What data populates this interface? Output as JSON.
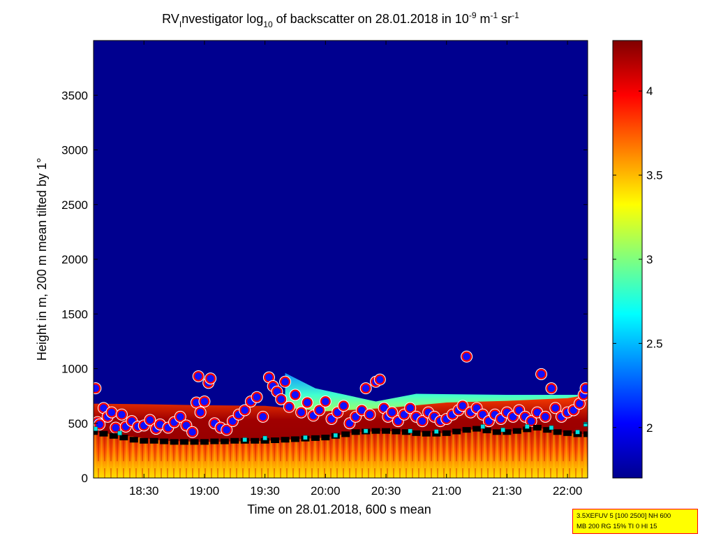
{
  "chart_data": {
    "type": "heatmap",
    "title": {
      "prefix": "RV",
      "sub1": "I",
      "mid1": "nvestigator log",
      "sub2": "10",
      "mid2": " of backscatter on 28.01.2018 in 10",
      "sup1": "-9",
      "mid3": " m",
      "sup2": "-1",
      "mid4": " sr",
      "sup3": "-1"
    },
    "xlabel": "Time on 28.01.2018, 600 s mean",
    "ylabel": "Height in m, 200 m mean tilted by 1°",
    "xlim": [
      "18:05",
      "22:10"
    ],
    "ylim": [
      0,
      4000
    ],
    "x_ticks": [
      "18:30",
      "19:00",
      "19:30",
      "20:00",
      "20:30",
      "21:00",
      "21:30",
      "22:00"
    ],
    "y_ticks": [
      0,
      500,
      1000,
      1500,
      2000,
      2500,
      3000,
      3500
    ],
    "colorbar": {
      "range": [
        1.7,
        4.3
      ],
      "ticks": [
        "2",
        "2.5",
        "3",
        "3.5",
        "4"
      ],
      "colormap": "jet"
    },
    "layers": {
      "aerosol_layer_top_m": [
        [
          "18:05",
          680
        ],
        [
          "18:30",
          675
        ],
        [
          "19:00",
          665
        ],
        [
          "19:30",
          660
        ],
        [
          "20:00",
          610
        ],
        [
          "20:30",
          640
        ],
        [
          "21:00",
          690
        ],
        [
          "21:30",
          705
        ],
        [
          "22:00",
          730
        ],
        [
          "22:10",
          760
        ]
      ],
      "cloud_layer_green_m": [
        [
          "19:40",
          960
        ],
        [
          "19:55",
          820
        ],
        [
          "20:25",
          700
        ],
        [
          "20:45",
          770
        ],
        [
          "21:30",
          760
        ],
        [
          "22:05",
          760
        ]
      ],
      "boundary_layer_height_m": [
        [
          "18:05",
          420
        ],
        [
          "18:20",
          390
        ],
        [
          "18:40",
          340
        ],
        [
          "19:00",
          330
        ],
        [
          "19:30",
          340
        ],
        [
          "20:00",
          370
        ],
        [
          "20:15",
          420
        ],
        [
          "20:30",
          430
        ],
        [
          "21:00",
          410
        ],
        [
          "21:15",
          450
        ],
        [
          "21:30",
          420
        ],
        [
          "21:45",
          460
        ],
        [
          "22:00",
          410
        ],
        [
          "22:10",
          400
        ]
      ]
    },
    "series": [
      {
        "marker": "red-blue-circle",
        "points": [
          [
            "18:06",
            820
          ],
          [
            "18:07",
            510
          ],
          [
            "18:08",
            490
          ],
          [
            "18:10",
            640
          ],
          [
            "18:12",
            560
          ],
          [
            "18:14",
            600
          ],
          [
            "18:16",
            460
          ],
          [
            "18:19",
            580
          ],
          [
            "18:21",
            470
          ],
          [
            "18:24",
            520
          ],
          [
            "18:27",
            470
          ],
          [
            "18:30",
            480
          ],
          [
            "18:33",
            530
          ],
          [
            "18:36",
            450
          ],
          [
            "18:38",
            490
          ],
          [
            "18:42",
            460
          ],
          [
            "18:45",
            510
          ],
          [
            "18:48",
            560
          ],
          [
            "18:51",
            480
          ],
          [
            "18:54",
            420
          ],
          [
            "18:56",
            690
          ],
          [
            "18:57",
            930
          ],
          [
            "18:58",
            600
          ],
          [
            "19:00",
            700
          ],
          [
            "19:02",
            870
          ],
          [
            "19:03",
            910
          ],
          [
            "19:05",
            500
          ],
          [
            "19:08",
            460
          ],
          [
            "19:11",
            440
          ],
          [
            "19:14",
            520
          ],
          [
            "19:17",
            580
          ],
          [
            "19:20",
            620
          ],
          [
            "19:23",
            700
          ],
          [
            "19:26",
            740
          ],
          [
            "19:29",
            560
          ],
          [
            "19:32",
            920
          ],
          [
            "19:34",
            840
          ],
          [
            "19:36",
            790
          ],
          [
            "19:38",
            720
          ],
          [
            "19:40",
            880
          ],
          [
            "19:42",
            650
          ],
          [
            "19:45",
            760
          ],
          [
            "19:48",
            600
          ],
          [
            "19:51",
            690
          ],
          [
            "19:54",
            570
          ],
          [
            "19:57",
            620
          ],
          [
            "20:00",
            700
          ],
          [
            "20:03",
            540
          ],
          [
            "20:06",
            600
          ],
          [
            "20:09",
            660
          ],
          [
            "20:12",
            500
          ],
          [
            "20:15",
            560
          ],
          [
            "20:18",
            620
          ],
          [
            "20:20",
            820
          ],
          [
            "20:22",
            580
          ],
          [
            "20:25",
            880
          ],
          [
            "20:27",
            900
          ],
          [
            "20:29",
            640
          ],
          [
            "20:31",
            560
          ],
          [
            "20:33",
            600
          ],
          [
            "20:36",
            520
          ],
          [
            "20:39",
            580
          ],
          [
            "20:42",
            640
          ],
          [
            "20:45",
            560
          ],
          [
            "20:48",
            520
          ],
          [
            "20:51",
            600
          ],
          [
            "20:54",
            560
          ],
          [
            "20:57",
            520
          ],
          [
            "21:00",
            540
          ],
          [
            "21:03",
            580
          ],
          [
            "21:06",
            620
          ],
          [
            "21:08",
            660
          ],
          [
            "21:10",
            1110
          ],
          [
            "21:12",
            600
          ],
          [
            "21:15",
            640
          ],
          [
            "21:18",
            580
          ],
          [
            "21:21",
            520
          ],
          [
            "21:24",
            580
          ],
          [
            "21:27",
            540
          ],
          [
            "21:30",
            600
          ],
          [
            "21:33",
            560
          ],
          [
            "21:36",
            620
          ],
          [
            "21:39",
            560
          ],
          [
            "21:42",
            520
          ],
          [
            "21:45",
            600
          ],
          [
            "21:47",
            950
          ],
          [
            "21:49",
            560
          ],
          [
            "21:52",
            820
          ],
          [
            "21:54",
            640
          ],
          [
            "21:57",
            560
          ],
          [
            "22:00",
            600
          ],
          [
            "22:03",
            620
          ],
          [
            "22:06",
            680
          ],
          [
            "22:08",
            760
          ],
          [
            "22:09",
            820
          ]
        ]
      },
      {
        "marker": "black-square",
        "points": [
          [
            "18:05",
            420
          ],
          [
            "18:10",
            405
          ],
          [
            "18:15",
            385
          ],
          [
            "18:20",
            370
          ],
          [
            "18:25",
            350
          ],
          [
            "18:30",
            340
          ],
          [
            "18:35",
            340
          ],
          [
            "18:40",
            335
          ],
          [
            "18:45",
            330
          ],
          [
            "18:50",
            330
          ],
          [
            "18:55",
            330
          ],
          [
            "19:00",
            330
          ],
          [
            "19:05",
            335
          ],
          [
            "19:10",
            335
          ],
          [
            "19:15",
            340
          ],
          [
            "19:20",
            340
          ],
          [
            "19:25",
            340
          ],
          [
            "19:30",
            340
          ],
          [
            "19:35",
            345
          ],
          [
            "19:40",
            350
          ],
          [
            "19:45",
            355
          ],
          [
            "19:50",
            360
          ],
          [
            "19:55",
            365
          ],
          [
            "20:00",
            370
          ],
          [
            "20:05",
            385
          ],
          [
            "20:10",
            400
          ],
          [
            "20:15",
            420
          ],
          [
            "20:20",
            425
          ],
          [
            "20:25",
            430
          ],
          [
            "20:30",
            430
          ],
          [
            "20:35",
            425
          ],
          [
            "20:40",
            420
          ],
          [
            "20:45",
            410
          ],
          [
            "20:50",
            405
          ],
          [
            "20:55",
            405
          ],
          [
            "21:00",
            410
          ],
          [
            "21:05",
            425
          ],
          [
            "21:10",
            440
          ],
          [
            "21:15",
            450
          ],
          [
            "21:20",
            435
          ],
          [
            "21:25",
            420
          ],
          [
            "21:30",
            420
          ],
          [
            "21:35",
            430
          ],
          [
            "21:40",
            445
          ],
          [
            "21:45",
            460
          ],
          [
            "21:50",
            440
          ],
          [
            "21:55",
            420
          ],
          [
            "22:00",
            410
          ],
          [
            "22:05",
            400
          ],
          [
            "22:10",
            400
          ]
        ]
      },
      {
        "marker": "cyan-square",
        "points": [
          [
            "18:06",
            450
          ],
          [
            "18:18",
            410
          ],
          [
            "19:20",
            350
          ],
          [
            "19:30",
            365
          ],
          [
            "19:50",
            370
          ],
          [
            "20:05",
            390
          ],
          [
            "20:20",
            430
          ],
          [
            "20:42",
            430
          ],
          [
            "20:55",
            425
          ],
          [
            "21:18",
            470
          ],
          [
            "21:28",
            440
          ],
          [
            "21:40",
            470
          ],
          [
            "21:52",
            460
          ],
          [
            "22:05",
            420
          ],
          [
            "22:09",
            490
          ]
        ]
      }
    ]
  },
  "info_box": {
    "line1": "3.5XEFUV 5 [100 2500] NH 600",
    "line2": "MB 200 RG 15% TI 0 HI 15"
  }
}
